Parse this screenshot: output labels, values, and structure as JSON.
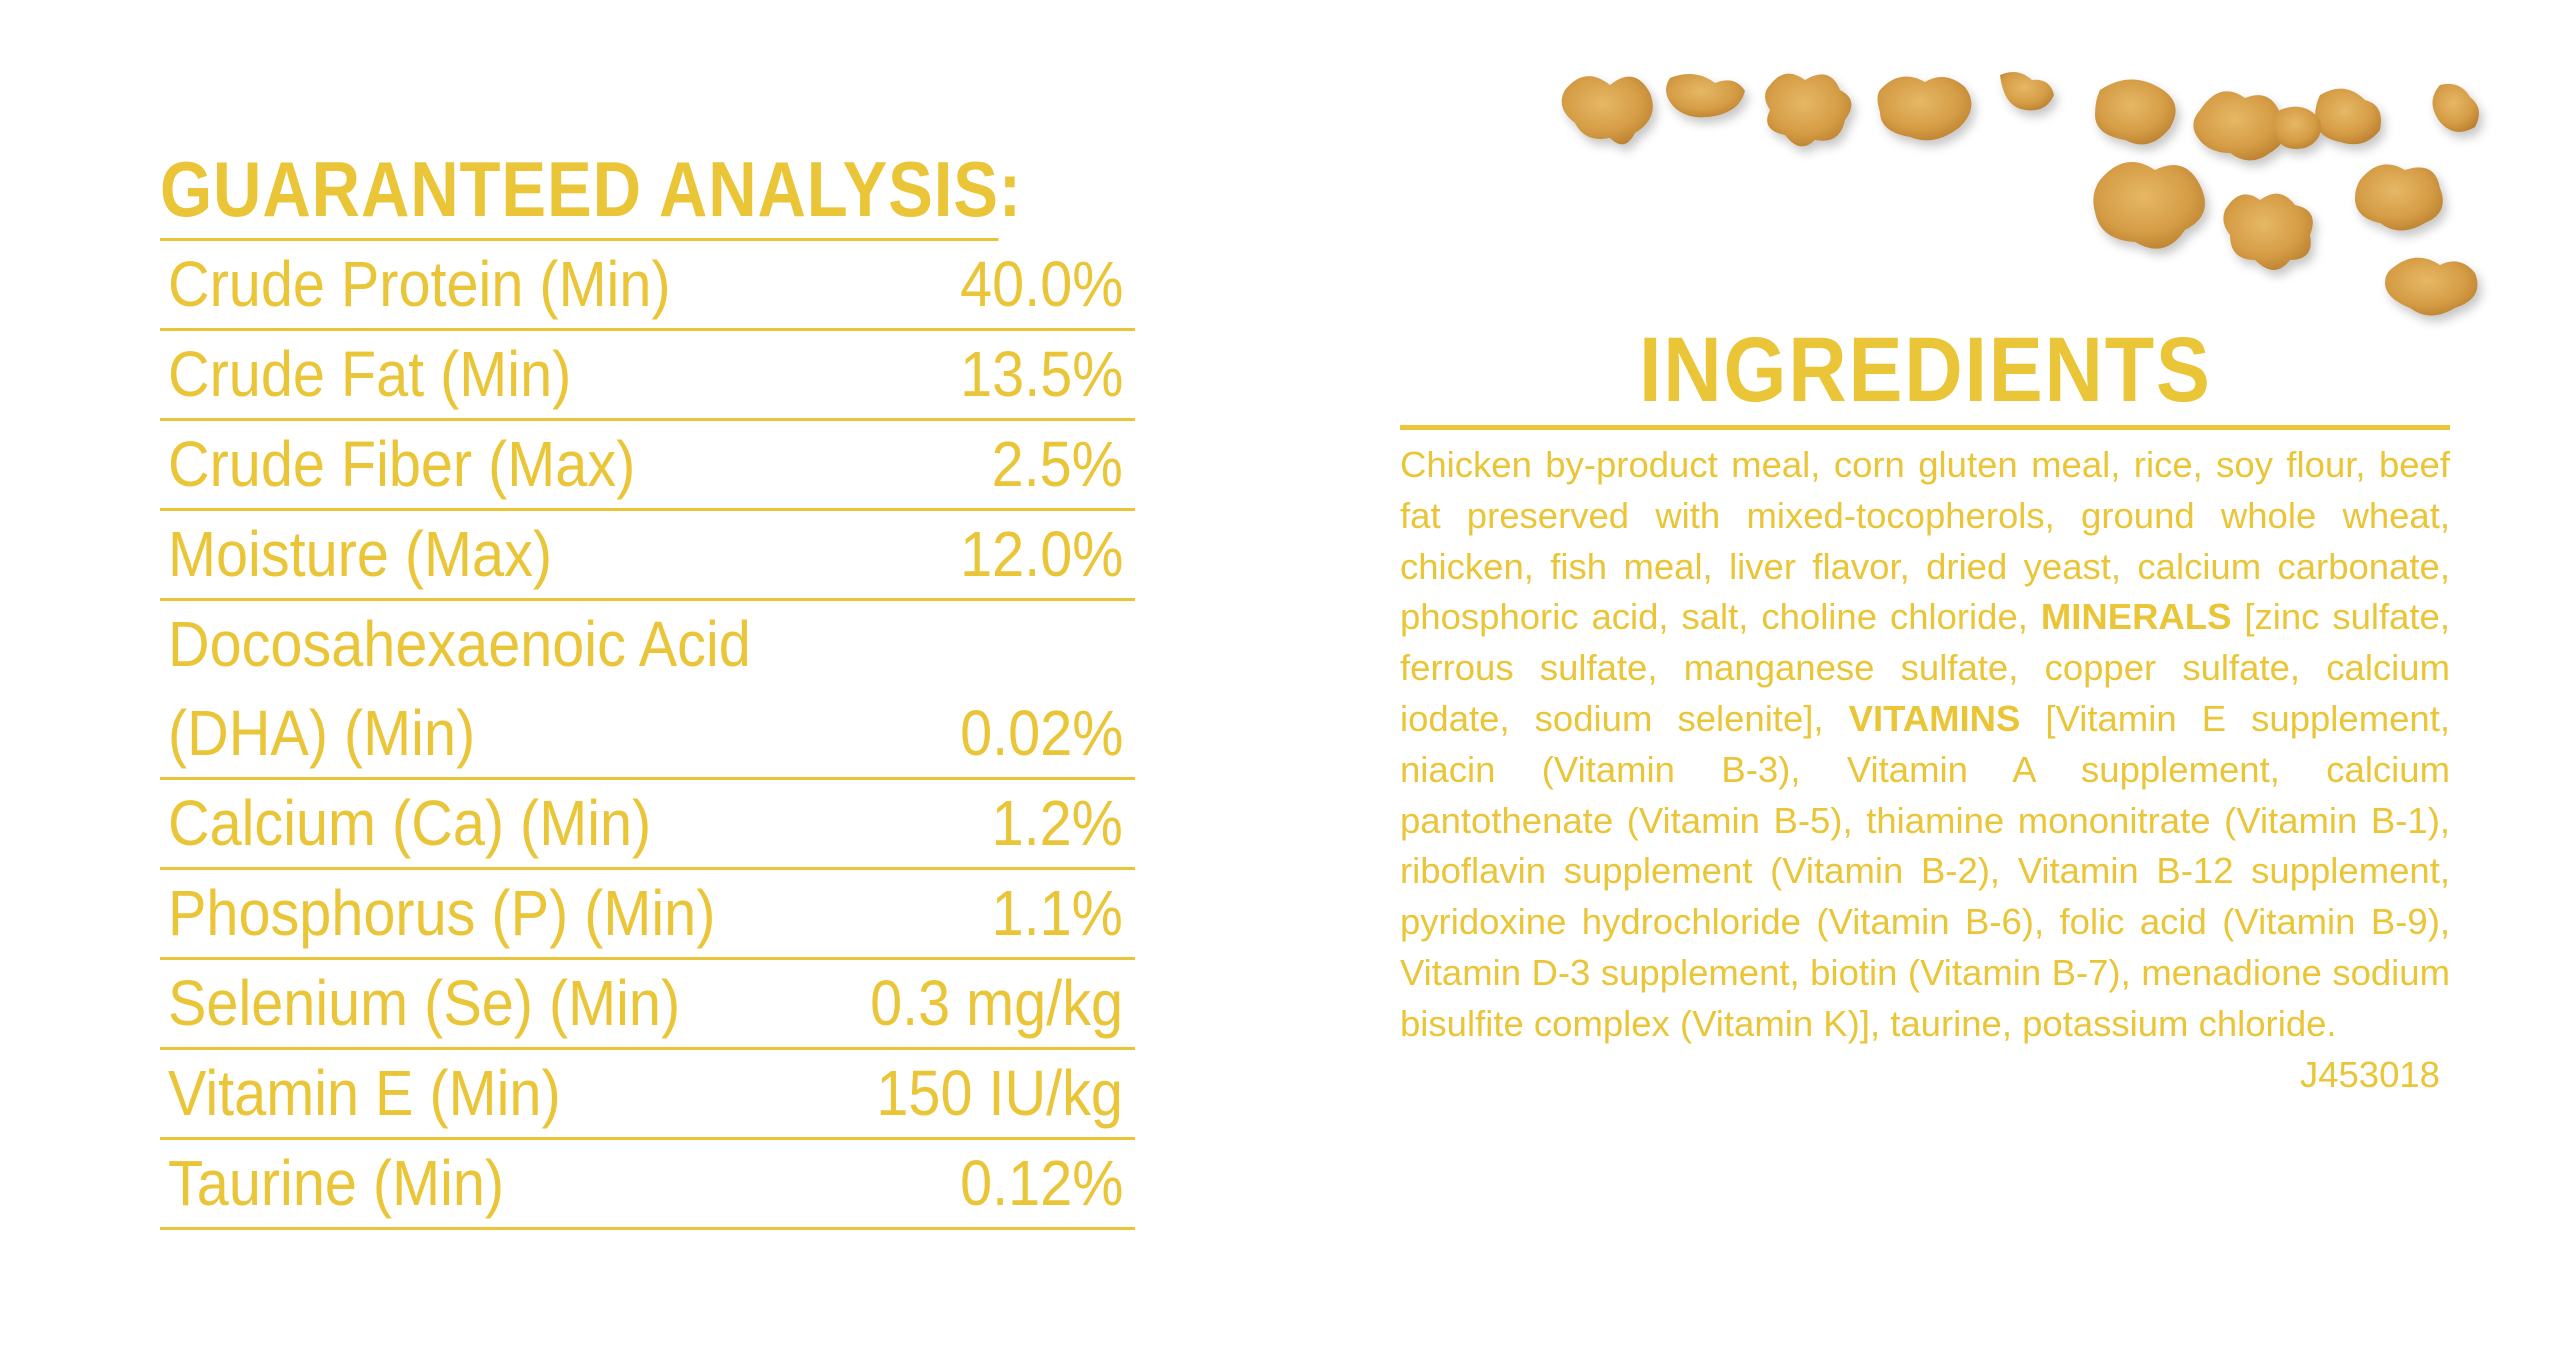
{
  "analysis": {
    "title": "GUARANTEED ANALYSIS:",
    "rows": [
      {
        "label": "Crude Protein (Min)",
        "value": "40.0%"
      },
      {
        "label": "Crude Fat (Min)",
        "value": "13.5%"
      },
      {
        "label": "Crude Fiber (Max)",
        "value": "2.5%"
      },
      {
        "label": "Moisture (Max)",
        "value": "12.0%"
      },
      {
        "label_line1": "Docosahexaenoic Acid",
        "label_line2": "(DHA) (Min)",
        "value": "0.02%"
      },
      {
        "label": "Calcium (Ca) (Min)",
        "value": "1.2%"
      },
      {
        "label": "Phosphorus (P) (Min)",
        "value": "1.1%"
      },
      {
        "label": "Selenium (Se) (Min)",
        "value": "0.3 mg/kg"
      },
      {
        "label": "Vitamin E (Min)",
        "value": "150 IU/kg"
      },
      {
        "label": "Taurine (Min)",
        "value": "0.12%"
      }
    ]
  },
  "ingredients": {
    "title": "INGREDIENTS",
    "part1": "Chicken by-product meal, corn gluten meal, rice, soy flour, beef fat preserved with mixed-tocopherols, ground whole wheat, chicken, fish meal, liver flavor, dried yeast, calcium carbonate, phosphoric acid, salt, choline chloride, ",
    "minerals_label": "MINERALS",
    "part2": " [zinc sulfate, ferrous sulfate, manganese sulfate, copper sulfate, calcium iodate, sodium selenite], ",
    "vitamins_label": "VITAMINS",
    "part3": " [Vitamin E supplement, niacin (Vitamin B-3), Vitamin A supplement, calcium pantothenate (Vitamin B-5), thiamine mononitrate (Vitamin B-1), riboflavin supplement (Vitamin B-2), Vitamin B-12 supplement, pyridoxine hydrochloride (Vitamin B-6), folic acid (Vitamin B-9), Vitamin D-3 supplement, biotin (Vitamin B-7), menadione sodium bisulfite complex (Vitamin K)], taurine, potassium chloride.",
    "code": "J453018"
  },
  "colors": {
    "accent": "#e9c537",
    "kibble": "#d9a24a",
    "background": "#ffffff"
  }
}
